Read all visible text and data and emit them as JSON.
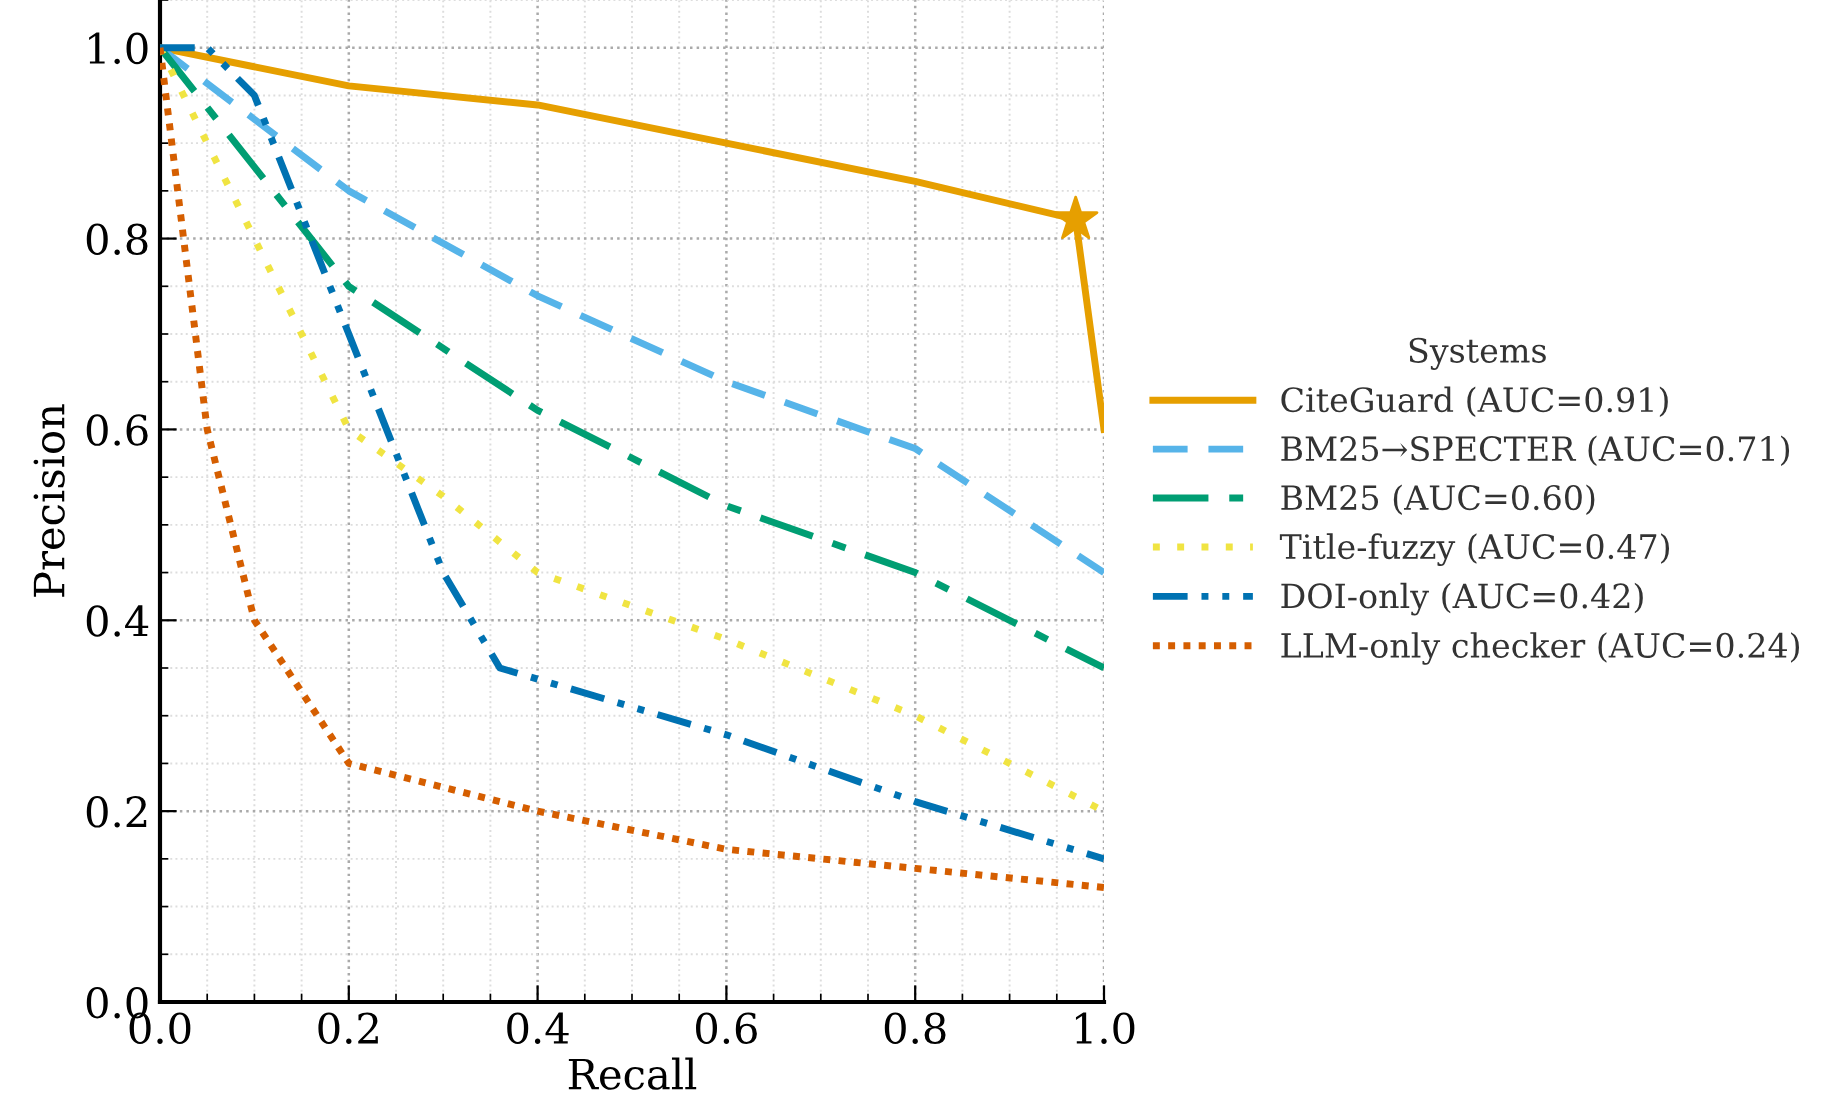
{
  "chart_data": {
    "type": "line",
    "xlabel": "Recall",
    "ylabel": "Precision",
    "legend_title": "Systems",
    "legend": "right",
    "grid": true,
    "xlim": [
      0,
      1
    ],
    "ylim": [
      0,
      1.05
    ],
    "xticks": [
      {
        "value": 0,
        "label": "0.0"
      },
      0.2,
      0.4,
      0.6,
      0.8,
      {
        "value": 1,
        "label": "1.0"
      }
    ],
    "yticks": [
      {
        "value": 0,
        "label": "0.0"
      },
      0.2,
      0.4,
      0.6,
      0.8,
      {
        "value": 1,
        "label": "1.0"
      }
    ],
    "series": [
      {
        "name": "CiteGuard (AUC=0.91)",
        "color": "#e69f00",
        "line_style": "solid",
        "x": [
          0,
          0.2,
          0.4,
          0.6,
          0.8,
          0.97,
          1.0
        ],
        "values": [
          1.0,
          0.96,
          0.94,
          0.9,
          0.86,
          0.82,
          0.6
        ]
      },
      {
        "name": "BM25→SPECTER (AUC=0.71)",
        "color": "#56b4e9",
        "line_style": "dashed",
        "x": [
          0,
          0.2,
          0.4,
          0.6,
          0.8,
          1.0
        ],
        "values": [
          1.0,
          0.85,
          0.74,
          0.65,
          0.58,
          0.45
        ]
      },
      {
        "name": "BM25 (AUC=0.60)",
        "color": "#009e73",
        "line_style": "dashdot",
        "x": [
          0,
          0.2,
          0.4,
          0.6,
          0.8,
          1.0
        ],
        "values": [
          1.0,
          0.75,
          0.62,
          0.52,
          0.45,
          0.35
        ]
      },
      {
        "name": "Title-fuzzy (AUC=0.47)",
        "color": "#f0e442",
        "line_style": "dotted",
        "x": [
          0,
          0.05,
          0.1,
          0.2,
          0.3,
          0.4,
          0.6,
          0.8,
          1.0
        ],
        "values": [
          1.0,
          0.9,
          0.8,
          0.6,
          0.53,
          0.45,
          0.38,
          0.3,
          0.2
        ]
      },
      {
        "name": "DOI-only (AUC=0.42)",
        "color": "#0072b2",
        "line_style": "dashdotdot",
        "x": [
          0,
          0.05,
          0.1,
          0.16,
          0.2,
          0.3,
          0.36,
          0.6,
          0.8,
          1.0
        ],
        "values": [
          1.0,
          1.0,
          0.95,
          0.8,
          0.7,
          0.45,
          0.35,
          0.28,
          0.21,
          0.15
        ]
      },
      {
        "name": "LLM-only checker (AUC=0.24)",
        "color": "#d55e00",
        "line_style": "densedotted",
        "x": [
          0,
          0.05,
          0.1,
          0.2,
          0.4,
          0.6,
          0.8,
          1.0
        ],
        "values": [
          1.0,
          0.6,
          0.4,
          0.25,
          0.2,
          0.16,
          0.14,
          0.12
        ]
      },
      {
        "type": "scatter",
        "marker": "star",
        "color": "#e69f00",
        "x": [
          0.97
        ],
        "values": [
          0.82
        ]
      }
    ]
  }
}
